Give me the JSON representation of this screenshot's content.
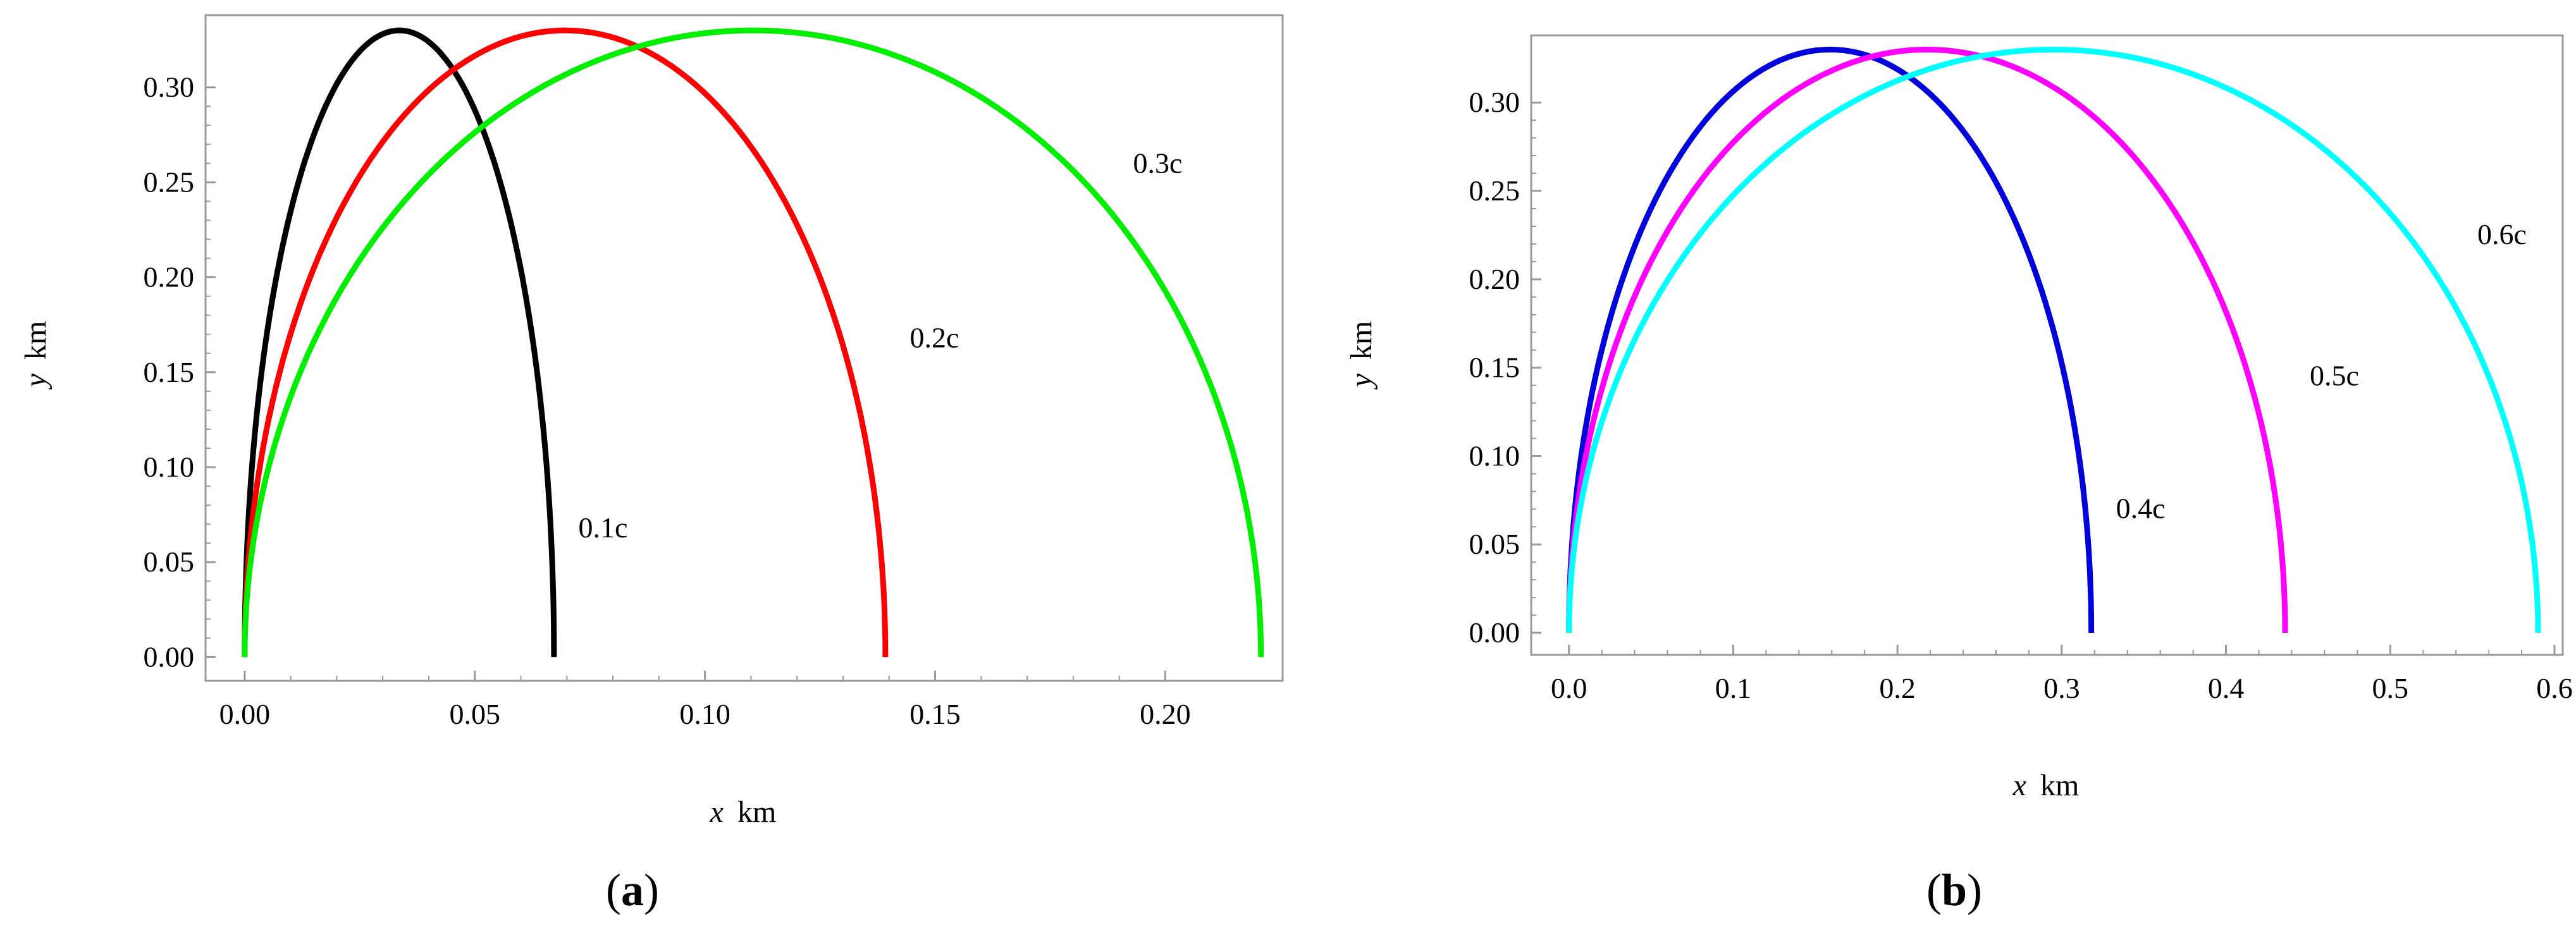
{
  "chart_data": [
    {
      "type": "line",
      "panel_label": "a",
      "xlabel_var": "x",
      "xlabel_unit": "km",
      "ylabel_var": "y",
      "ylabel_unit": "km",
      "xlim": [
        -0.0085,
        0.2255
      ],
      "ylim": [
        -0.0125,
        0.338
      ],
      "xticks": [
        0.0,
        0.05,
        0.1,
        0.15,
        0.2
      ],
      "xtick_labels": [
        "0.00",
        "0.05",
        "0.10",
        "0.15",
        "0.20"
      ],
      "yticks": [
        0.0,
        0.05,
        0.1,
        0.15,
        0.2,
        0.25,
        0.3
      ],
      "ytick_labels": [
        "0.00",
        "0.05",
        "0.10",
        "0.15",
        "0.20",
        "0.25",
        "0.30"
      ],
      "grid": false,
      "series": [
        {
          "label": "0.1c",
          "color": "#000000",
          "x": [
            0.0,
            0.0336,
            0.0672
          ],
          "y": [
            0.0,
            0.33,
            0.0
          ],
          "label_x": 0.0725,
          "label_y": 0.063
        },
        {
          "label": "0.2c",
          "color": "#ff0000",
          "x": [
            0.0,
            0.0696,
            0.1392
          ],
          "y": [
            0.0,
            0.33,
            0.0
          ],
          "label_x": 0.1445,
          "label_y": 0.163
        },
        {
          "label": "0.3c",
          "color": "#00ee00",
          "x": [
            0.0,
            0.1104,
            0.2208
          ],
          "y": [
            0.0,
            0.33,
            0.0
          ],
          "label_x": 0.193,
          "label_y": 0.255
        }
      ]
    },
    {
      "type": "line",
      "panel_label": "b",
      "xlabel_var": "x",
      "xlabel_unit": "km",
      "ylabel_var": "y",
      "ylabel_unit": "km",
      "xlim": [
        -0.023,
        0.605
      ],
      "ylim": [
        -0.0125,
        0.338
      ],
      "xticks": [
        0.0,
        0.1,
        0.2,
        0.3,
        0.4,
        0.5,
        0.6
      ],
      "xtick_labels": [
        "0.0",
        "0.1",
        "0.2",
        "0.3",
        "0.4",
        "0.5",
        "0.6"
      ],
      "yticks": [
        0.0,
        0.05,
        0.1,
        0.15,
        0.2,
        0.25,
        0.3
      ],
      "ytick_labels": [
        "0.00",
        "0.05",
        "0.10",
        "0.15",
        "0.20",
        "0.25",
        "0.30"
      ],
      "grid": false,
      "series": [
        {
          "label": "0.4c",
          "color": "#0000dd",
          "x": [
            0.0,
            0.159,
            0.318
          ],
          "y": [
            0.0,
            0.33,
            0.0
          ],
          "label_x": 0.333,
          "label_y": 0.065
        },
        {
          "label": "0.5c",
          "color": "#ff00ff",
          "x": [
            0.0,
            0.218,
            0.436
          ],
          "y": [
            0.0,
            0.33,
            0.0
          ],
          "label_x": 0.451,
          "label_y": 0.14
        },
        {
          "label": "0.6c",
          "color": "#00ffff",
          "x": [
            0.0,
            0.295,
            0.59
          ],
          "y": [
            0.0,
            0.33,
            0.0
          ],
          "label_x": 0.553,
          "label_y": 0.22
        }
      ]
    }
  ]
}
